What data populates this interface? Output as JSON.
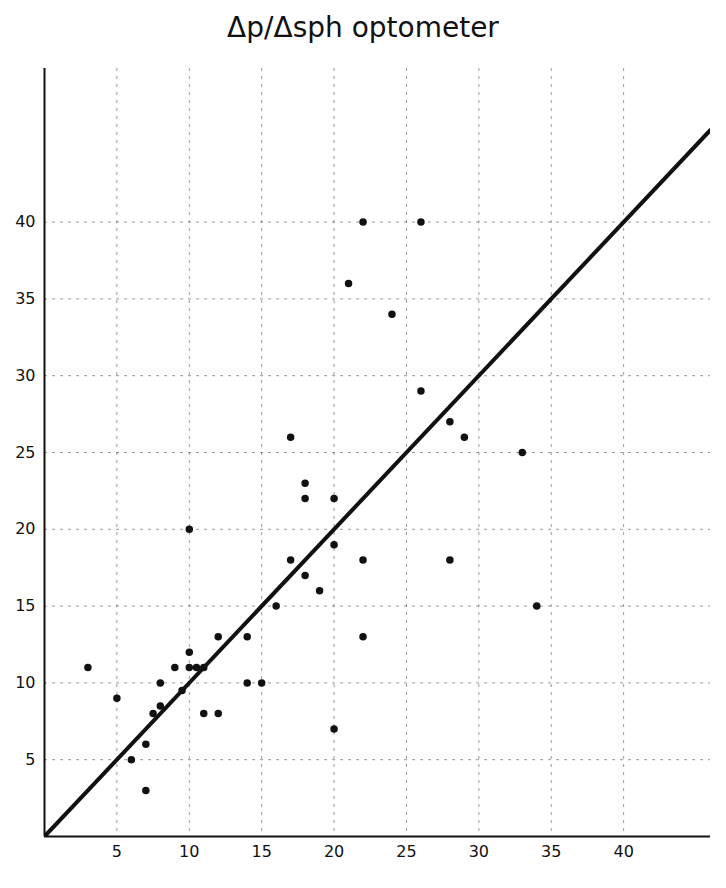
{
  "chart_data": {
    "type": "scatter",
    "title": "Δp/Δsph optometer",
    "xlim": [
      0,
      46
    ],
    "ylim": [
      0,
      50
    ],
    "xticks": [
      5,
      10,
      15,
      20,
      25,
      30,
      35,
      40
    ],
    "yticks": [
      5,
      10,
      15,
      20,
      25,
      30,
      35,
      40
    ],
    "grid": true,
    "series": [
      {
        "type": "scatter",
        "marker": "circle",
        "color": "#111111",
        "x": [
          3,
          5,
          6,
          7,
          7,
          7.5,
          8,
          8,
          9,
          9.5,
          10,
          10,
          10,
          10.5,
          11,
          11,
          12,
          12,
          14,
          14,
          15,
          16,
          17,
          17,
          18,
          18,
          18,
          19,
          20,
          20,
          20,
          21,
          22,
          22,
          22,
          24,
          26,
          26,
          28,
          28,
          29,
          33,
          34
        ],
        "values": [
          11,
          9,
          5,
          6,
          3,
          8,
          8.5,
          10,
          11,
          9.5,
          12,
          20,
          11,
          11,
          11,
          8,
          8,
          13,
          13,
          10,
          10,
          15,
          18,
          26,
          23,
          22,
          17,
          16,
          22,
          19,
          7,
          36,
          40,
          18,
          13,
          34,
          40,
          29,
          27,
          18,
          26,
          25,
          15
        ]
      },
      {
        "type": "line",
        "line_style": "solid",
        "color": "#111111",
        "x": [
          0,
          46
        ],
        "values": [
          0,
          46
        ]
      }
    ]
  }
}
